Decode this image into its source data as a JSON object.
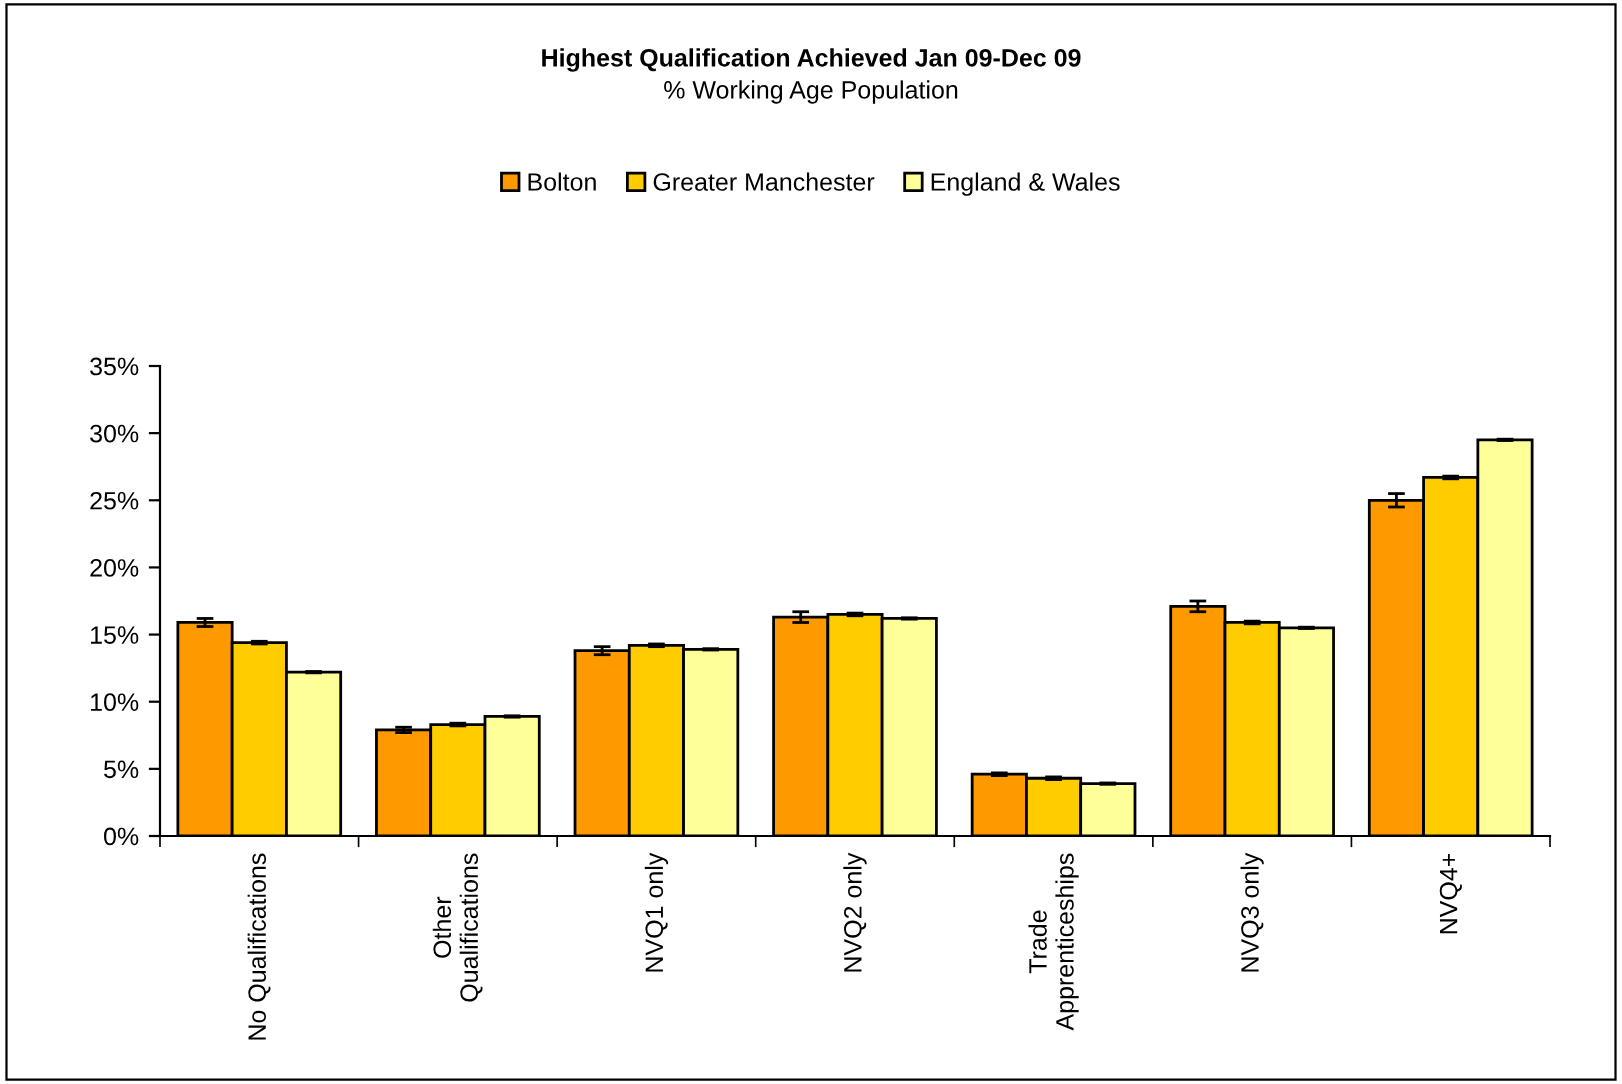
{
  "chart_data": {
    "type": "bar",
    "title": "Highest Qualification Achieved Jan 09-Dec 09",
    "subtitle": "% Working Age Population",
    "categories": [
      "No Qualifications",
      "Other\nQualifications",
      "NVQ1 only",
      "NVQ2 only",
      "Trade\nApprenticeships",
      "NVQ3 only",
      "NVQ4+"
    ],
    "series": [
      {
        "name": "Bolton",
        "color": "#ff9900",
        "values": [
          15.9,
          7.9,
          13.8,
          16.3,
          4.6,
          17.1,
          25.0
        ],
        "errors": [
          0.3,
          0.2,
          0.3,
          0.4,
          0.1,
          0.4,
          0.5
        ]
      },
      {
        "name": "Greater Manchester",
        "color": "#ffcc00",
        "values": [
          14.4,
          8.3,
          14.2,
          16.5,
          4.3,
          15.9,
          26.7
        ],
        "errors": [
          0.1,
          0.1,
          0.1,
          0.1,
          0.1,
          0.1,
          0.1
        ]
      },
      {
        "name": "England & Wales",
        "color": "#ffff99",
        "values": [
          12.2,
          8.9,
          13.9,
          16.2,
          3.9,
          15.5,
          29.5
        ],
        "errors": [
          0.05,
          0.05,
          0.05,
          0.05,
          0.05,
          0.05,
          0.05
        ]
      }
    ],
    "ylim": [
      0,
      35
    ],
    "yticks": [
      {
        "value": 0,
        "label": "0%"
      },
      {
        "value": 5,
        "label": "5%"
      },
      {
        "value": 10,
        "label": "10%"
      },
      {
        "value": 15,
        "label": "15%"
      },
      {
        "value": 20,
        "label": "20%"
      },
      {
        "value": 25,
        "label": "25%"
      },
      {
        "value": 30,
        "label": "30%"
      },
      {
        "value": 35,
        "label": "35%"
      }
    ],
    "grid": false,
    "legend": "top"
  }
}
